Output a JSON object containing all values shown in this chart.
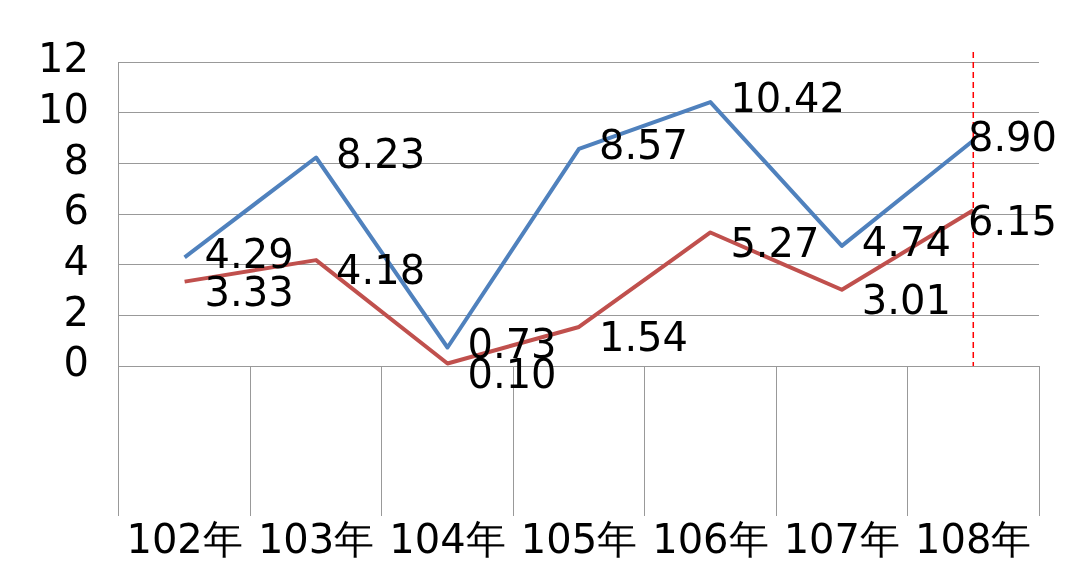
{
  "chart_data": {
    "type": "line",
    "categories": [
      "102年",
      "103年",
      "104年",
      "105年",
      "106年",
      "107年",
      "108年"
    ],
    "series": [
      {
        "color": "#4f81bd",
        "values": [
          4.29,
          8.23,
          0.73,
          8.57,
          10.42,
          4.74,
          8.9
        ],
        "value_labels": [
          "4.29",
          "8.23",
          "0.73",
          "8.57",
          "10.42",
          "4.74",
          "8.90"
        ]
      },
      {
        "color": "#c0504d",
        "values": [
          3.33,
          4.18,
          0.1,
          1.54,
          5.27,
          3.01,
          6.15
        ],
        "value_labels": [
          "3.33",
          "4.18",
          "0.10",
          "1.54",
          "5.27",
          "3.01",
          "6.15"
        ]
      }
    ],
    "ylim": [
      0,
      12
    ],
    "yticks": [
      0,
      2,
      4,
      6,
      8,
      10,
      12
    ],
    "grid": "y",
    "legend": false,
    "marker": "none",
    "line_style": "solid",
    "ref_lines": [
      {
        "axis": "x",
        "value": "108年",
        "color": "#ff0000",
        "line_style": "dashed"
      }
    ]
  }
}
